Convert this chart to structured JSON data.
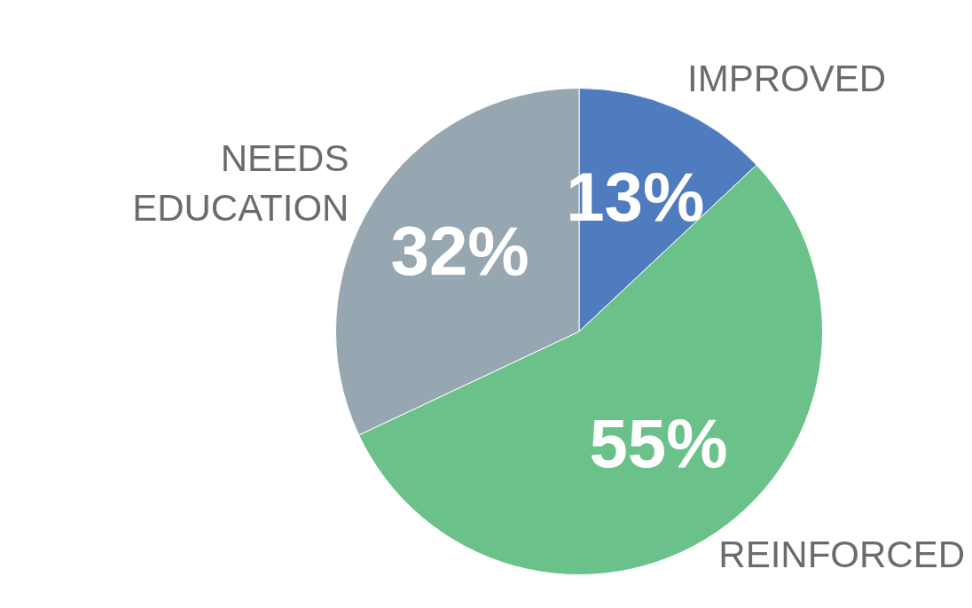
{
  "chart_data": {
    "type": "pie",
    "categories": [
      "IMPROVED",
      "REINFORCED",
      "NEEDS EDUCATION"
    ],
    "values": [
      13,
      55,
      32
    ],
    "colors": [
      "#4f7bbf",
      "#6ac28a",
      "#97a7b1"
    ],
    "value_labels": [
      "13%",
      "55%",
      "32%"
    ],
    "legend": false
  }
}
